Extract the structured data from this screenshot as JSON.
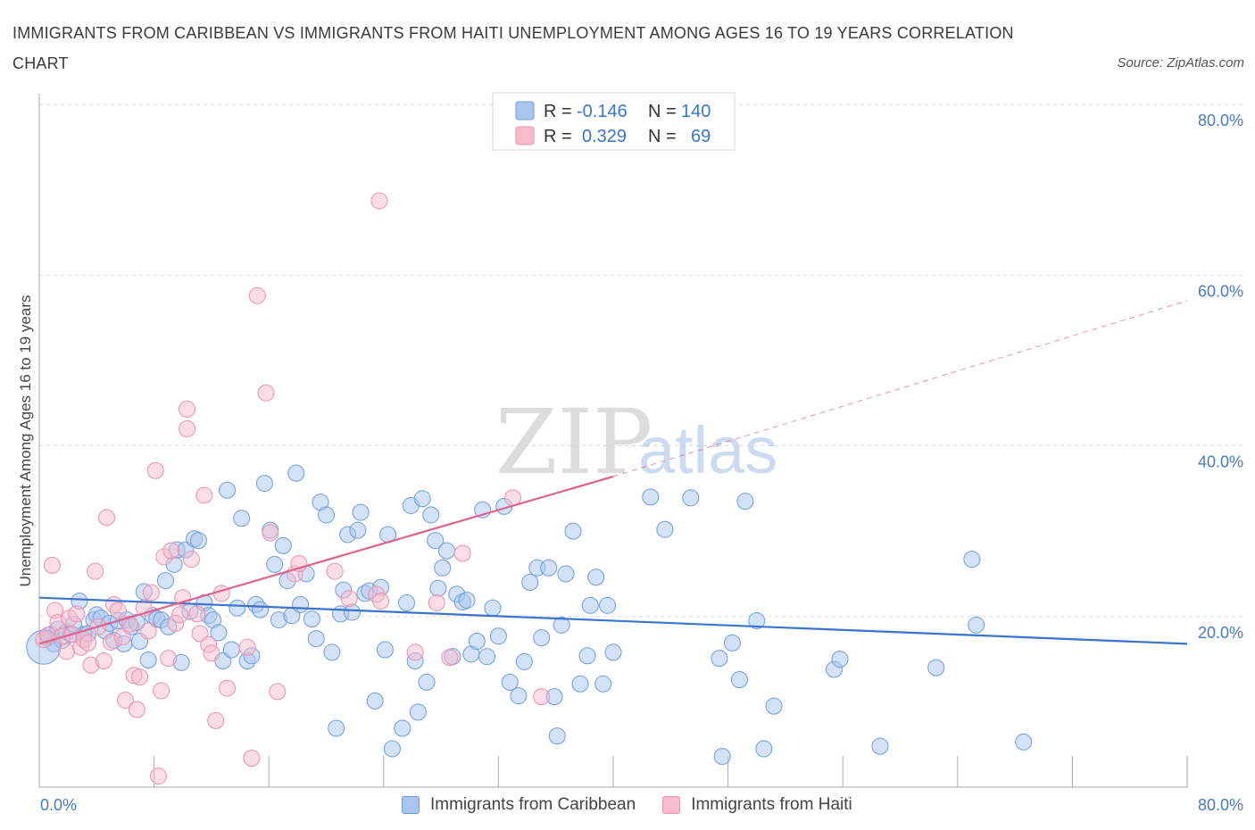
{
  "header": {
    "title": "IMMIGRANTS FROM CARIBBEAN VS IMMIGRANTS FROM HAITI UNEMPLOYMENT AMONG AGES 16 TO 19 YEARS CORRELATION CHART",
    "source": "Source: ZipAtlas.com"
  },
  "watermark": {
    "zip": "ZIP",
    "atlas": "atlas"
  },
  "colors": {
    "caribbean_fill": "#aac6f0",
    "caribbean_stroke": "#6f9bdc",
    "caribbean_line": "#3a74cf",
    "haiti_fill": "#f6bccd",
    "haiti_stroke": "#e892ad",
    "haiti_line": "#e0628e",
    "tick_text": "#4a78c2",
    "grid": "#d9d9d9"
  },
  "legend": {
    "rows": [
      {
        "r_label": "R =",
        "r_value": "-0.146",
        "n_label": "N =",
        "n_value": "140"
      },
      {
        "r_label": "R =",
        "r_value": "0.329",
        "n_label": "N =",
        "n_value": "69"
      }
    ]
  },
  "bottom_legend": {
    "items": [
      {
        "label": "Immigrants from Caribbean"
      },
      {
        "label": "Immigrants from Haiti"
      }
    ]
  },
  "chart_data": {
    "type": "scatter",
    "title": "IMMIGRANTS FROM CARIBBEAN VS IMMIGRANTS FROM HAITI UNEMPLOYMENT AMONG AGES 16 TO 19 YEARS CORRELATION CHART",
    "xlabel": "",
    "ylabel": "Unemployment Among Ages 16 to 19 years",
    "xlim": [
      0,
      80
    ],
    "ylim": [
      0,
      80
    ],
    "x_tick_labels": [
      "0.0%",
      "80.0%"
    ],
    "y_ticks": [
      {
        "value": 20,
        "label": "20.0%"
      },
      {
        "value": 40,
        "label": "40.0%"
      },
      {
        "value": 60,
        "label": "60.0%"
      },
      {
        "value": 80,
        "label": "80.0%"
      }
    ],
    "grid": true,
    "legend_position": "top-center",
    "series": [
      {
        "name": "Immigrants from Caribbean",
        "r": -0.146,
        "n": 140,
        "trend": {
          "x": [
            0,
            80
          ],
          "y": [
            22.2,
            16.8
          ]
        },
        "points": [
          [
            0.6,
            17.5
          ],
          [
            0.8,
            17.9
          ],
          [
            1.0,
            16.8
          ],
          [
            1.3,
            18.5
          ],
          [
            1.6,
            17.2
          ],
          [
            1.9,
            18.2
          ],
          [
            2.2,
            17.9
          ],
          [
            2.4,
            19.1
          ],
          [
            2.8,
            21.8
          ],
          [
            3.1,
            17.9
          ],
          [
            3.4,
            18.0
          ],
          [
            3.8,
            19.6
          ],
          [
            4.0,
            20.2
          ],
          [
            4.3,
            19.8
          ],
          [
            4.6,
            18.3
          ],
          [
            4.9,
            19.2
          ],
          [
            5.2,
            17.2
          ],
          [
            5.5,
            19.5
          ],
          [
            5.9,
            16.8
          ],
          [
            6.1,
            19.6
          ],
          [
            6.4,
            18.8
          ],
          [
            6.8,
            19.3
          ],
          [
            7.0,
            17.1
          ],
          [
            7.3,
            22.9
          ],
          [
            7.6,
            14.9
          ],
          [
            7.9,
            20.1
          ],
          [
            8.2,
            19.7
          ],
          [
            8.5,
            19.6
          ],
          [
            8.8,
            24.2
          ],
          [
            9.0,
            18.8
          ],
          [
            9.4,
            26.1
          ],
          [
            9.6,
            27.8
          ],
          [
            9.9,
            14.6
          ],
          [
            10.2,
            27.8
          ],
          [
            10.5,
            20.6
          ],
          [
            10.8,
            29.1
          ],
          [
            11.1,
            28.9
          ],
          [
            11.5,
            21.6
          ],
          [
            11.8,
            20.1
          ],
          [
            12.1,
            19.6
          ],
          [
            12.5,
            18.1
          ],
          [
            12.8,
            14.8
          ],
          [
            13.1,
            34.8
          ],
          [
            13.4,
            16.1
          ],
          [
            13.8,
            21.0
          ],
          [
            14.1,
            31.5
          ],
          [
            14.5,
            14.8
          ],
          [
            14.8,
            15.4
          ],
          [
            15.1,
            21.4
          ],
          [
            15.4,
            20.8
          ],
          [
            15.7,
            35.6
          ],
          [
            16.1,
            30.1
          ],
          [
            16.4,
            26.1
          ],
          [
            16.7,
            19.6
          ],
          [
            17.0,
            28.3
          ],
          [
            17.3,
            24.2
          ],
          [
            17.6,
            20.1
          ],
          [
            17.9,
            36.8
          ],
          [
            18.2,
            21.4
          ],
          [
            18.6,
            25.0
          ],
          [
            19.0,
            19.7
          ],
          [
            19.3,
            17.4
          ],
          [
            19.6,
            33.4
          ],
          [
            20.0,
            31.9
          ],
          [
            20.4,
            15.8
          ],
          [
            20.7,
            6.9
          ],
          [
            21.0,
            20.3
          ],
          [
            21.2,
            23.1
          ],
          [
            21.5,
            29.6
          ],
          [
            21.8,
            20.5
          ],
          [
            22.2,
            30.1
          ],
          [
            22.4,
            32.2
          ],
          [
            22.7,
            22.7
          ],
          [
            23.0,
            23.0
          ],
          [
            23.4,
            10.1
          ],
          [
            23.8,
            23.4
          ],
          [
            24.1,
            16.1
          ],
          [
            24.3,
            29.6
          ],
          [
            24.6,
            4.5
          ],
          [
            25.3,
            6.9
          ],
          [
            25.6,
            21.6
          ],
          [
            25.9,
            33.0
          ],
          [
            26.2,
            14.8
          ],
          [
            26.4,
            8.8
          ],
          [
            26.7,
            33.8
          ],
          [
            27.0,
            12.3
          ],
          [
            27.3,
            31.9
          ],
          [
            27.6,
            28.9
          ],
          [
            27.8,
            23.3
          ],
          [
            28.1,
            25.7
          ],
          [
            28.4,
            27.7
          ],
          [
            28.8,
            15.3
          ],
          [
            29.1,
            22.6
          ],
          [
            29.5,
            21.7
          ],
          [
            29.8,
            21.9
          ],
          [
            30.1,
            15.6
          ],
          [
            30.5,
            17.1
          ],
          [
            30.9,
            32.5
          ],
          [
            31.2,
            15.3
          ],
          [
            31.6,
            21.0
          ],
          [
            32.0,
            17.7
          ],
          [
            32.4,
            32.9
          ],
          [
            32.8,
            12.3
          ],
          [
            33.4,
            10.7
          ],
          [
            33.8,
            14.7
          ],
          [
            34.2,
            24.0
          ],
          [
            34.7,
            25.7
          ],
          [
            35.0,
            17.5
          ],
          [
            35.5,
            25.7
          ],
          [
            35.9,
            10.6
          ],
          [
            36.1,
            6.0
          ],
          [
            36.4,
            19.0
          ],
          [
            36.7,
            25.0
          ],
          [
            37.2,
            30.0
          ],
          [
            37.7,
            12.1
          ],
          [
            38.2,
            15.4
          ],
          [
            38.4,
            21.3
          ],
          [
            38.8,
            24.6
          ],
          [
            39.3,
            12.1
          ],
          [
            39.6,
            21.3
          ],
          [
            40.0,
            15.8
          ],
          [
            42.6,
            34.0
          ],
          [
            43.6,
            30.2
          ],
          [
            45.4,
            33.9
          ],
          [
            47.4,
            15.1
          ],
          [
            47.6,
            3.6
          ],
          [
            48.3,
            16.9
          ],
          [
            48.8,
            12.6
          ],
          [
            49.2,
            33.5
          ],
          [
            50.0,
            19.5
          ],
          [
            50.5,
            4.5
          ],
          [
            51.2,
            9.5
          ],
          [
            55.4,
            13.8
          ],
          [
            55.8,
            15.0
          ],
          [
            58.6,
            4.8
          ],
          [
            62.5,
            14.0
          ],
          [
            65.0,
            26.7
          ],
          [
            65.3,
            19.0
          ],
          [
            68.6,
            5.3
          ],
          [
            0.3,
            16.4
          ]
        ]
      },
      {
        "name": "Immigrants from Haiti",
        "r": 0.329,
        "n": 69,
        "trend": {
          "x": [
            0,
            40
          ],
          "y": [
            16.8,
            36.4
          ]
        },
        "trend_extended": {
          "x": [
            40,
            80
          ],
          "y": [
            36.4,
            57.0
          ]
        },
        "points": [
          [
            0.3,
            17.3
          ],
          [
            0.6,
            17.8
          ],
          [
            0.9,
            26.0
          ],
          [
            1.1,
            20.7
          ],
          [
            1.3,
            19.3
          ],
          [
            1.6,
            17.7
          ],
          [
            1.9,
            15.9
          ],
          [
            2.1,
            19.8
          ],
          [
            2.3,
            17.9
          ],
          [
            2.6,
            20.3
          ],
          [
            2.9,
            16.4
          ],
          [
            3.1,
            17.3
          ],
          [
            3.4,
            16.9
          ],
          [
            3.6,
            14.3
          ],
          [
            3.9,
            25.3
          ],
          [
            4.1,
            18.8
          ],
          [
            4.5,
            14.8
          ],
          [
            4.7,
            31.6
          ],
          [
            5.0,
            17.0
          ],
          [
            5.2,
            21.4
          ],
          [
            5.5,
            20.7
          ],
          [
            5.8,
            17.6
          ],
          [
            6.0,
            10.2
          ],
          [
            6.3,
            19.1
          ],
          [
            6.6,
            13.1
          ],
          [
            6.8,
            9.1
          ],
          [
            7.0,
            12.9
          ],
          [
            7.3,
            21.0
          ],
          [
            7.6,
            18.3
          ],
          [
            7.8,
            22.8
          ],
          [
            8.1,
            37.1
          ],
          [
            8.3,
            1.3
          ],
          [
            8.5,
            11.3
          ],
          [
            8.7,
            27.0
          ],
          [
            9.0,
            15.1
          ],
          [
            9.2,
            27.7
          ],
          [
            9.5,
            19.2
          ],
          [
            9.8,
            20.2
          ],
          [
            10.0,
            22.2
          ],
          [
            10.3,
            44.3
          ],
          [
            10.3,
            42.0
          ],
          [
            10.6,
            26.7
          ],
          [
            11.0,
            20.3
          ],
          [
            11.2,
            18.0
          ],
          [
            11.5,
            34.2
          ],
          [
            11.8,
            16.7
          ],
          [
            12.0,
            15.7
          ],
          [
            12.3,
            7.8
          ],
          [
            12.7,
            22.7
          ],
          [
            13.1,
            11.6
          ],
          [
            14.5,
            16.4
          ],
          [
            14.8,
            3.4
          ],
          [
            15.2,
            57.6
          ],
          [
            15.8,
            46.2
          ],
          [
            16.1,
            29.8
          ],
          [
            16.6,
            11.2
          ],
          [
            17.8,
            25.0
          ],
          [
            18.1,
            26.2
          ],
          [
            20.6,
            25.3
          ],
          [
            21.6,
            22.1
          ],
          [
            23.5,
            22.6
          ],
          [
            23.8,
            21.8
          ],
          [
            26.2,
            15.8
          ],
          [
            28.6,
            15.2
          ],
          [
            29.5,
            27.4
          ],
          [
            33.0,
            33.9
          ],
          [
            35.0,
            10.6
          ],
          [
            23.7,
            68.7
          ],
          [
            27.7,
            21.6
          ]
        ]
      }
    ]
  }
}
